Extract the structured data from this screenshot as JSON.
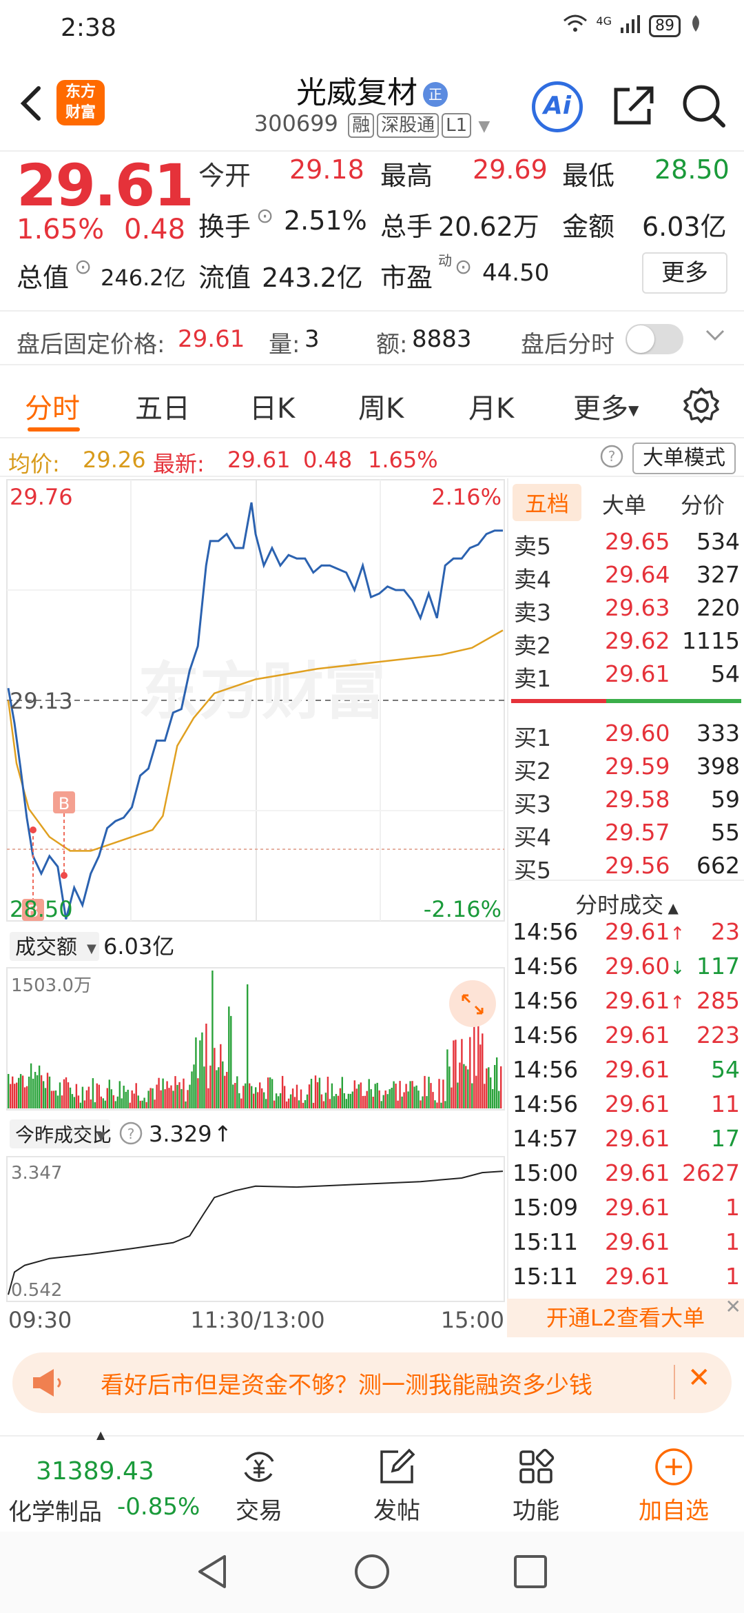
{
  "status": {
    "time": "2:38",
    "network": "4G",
    "battery": "89"
  },
  "header": {
    "logo_line1": "东方",
    "logo_line2": "财富",
    "stock_name": "光威复材",
    "badge": "正",
    "code": "300699",
    "tags": [
      "融",
      "深股通",
      "L1"
    ],
    "ai_label": "Ai"
  },
  "quote": {
    "price": "29.61",
    "pct": "1.65%",
    "change": "0.48",
    "open_label": "今开",
    "open": "29.18",
    "high_label": "最高",
    "high": "29.69",
    "low_label": "最低",
    "low": "28.50",
    "turnover_label": "换手",
    "turnover": "2.51%",
    "volume_label": "总手",
    "volume": "20.62万",
    "amount_label": "金额",
    "amount": "6.03亿",
    "mcap_label": "总值",
    "mcap": "246.2亿",
    "float_label": "流值",
    "float": "243.2亿",
    "pe_label": "市盈",
    "pe_sup": "动",
    "pe": "44.50",
    "more": "更多"
  },
  "after_hours": {
    "label": "盘后固定价格:",
    "price": "29.61",
    "qty_label": "量:",
    "qty": "3",
    "amt_label": "额:",
    "amt": "8883",
    "toggle_label": "盘后分时"
  },
  "tabs": [
    "分时",
    "五日",
    "日K",
    "周K",
    "月K",
    "更多"
  ],
  "avg": {
    "avg_label": "均价:",
    "avg": "29.26",
    "last_label": "最新:",
    "last": "29.61",
    "chg": "0.48",
    "pct": "1.65%",
    "mode_btn": "大单模式"
  },
  "chart": {
    "y_top": "29.76",
    "y_mid": "29.13",
    "y_bot": "28.50",
    "pct_top": "2.16%",
    "pct_bot": "-2.16%",
    "watermark": "东方财富",
    "marker": "B",
    "vol_selector": "成交额",
    "vol_total": "6.03亿",
    "vol_max": "1503.0万",
    "ratio_selector": "今昨成交比",
    "ratio_value": "3.329",
    "ratio_arrow": "↑",
    "ratio_top": "3.347",
    "ratio_bot": "0.542",
    "time_start": "09:30",
    "time_mid": "11:30/13:00",
    "time_end": "15:00"
  },
  "orderbook": {
    "tabs": [
      "五档",
      "大单",
      "分价"
    ],
    "asks": [
      {
        "label": "卖5",
        "price": "29.65",
        "vol": "534"
      },
      {
        "label": "卖4",
        "price": "29.64",
        "vol": "327"
      },
      {
        "label": "卖3",
        "price": "29.63",
        "vol": "220"
      },
      {
        "label": "卖2",
        "price": "29.62",
        "vol": "1115"
      },
      {
        "label": "卖1",
        "price": "29.61",
        "vol": "54"
      }
    ],
    "bids": [
      {
        "label": "买1",
        "price": "29.60",
        "vol": "333"
      },
      {
        "label": "买2",
        "price": "29.59",
        "vol": "398"
      },
      {
        "label": "买3",
        "price": "29.58",
        "vol": "59"
      },
      {
        "label": "买4",
        "price": "29.57",
        "vol": "55"
      },
      {
        "label": "买5",
        "price": "29.56",
        "vol": "662"
      }
    ],
    "ticks_title": "分时成交",
    "ticks": [
      {
        "t": "14:56",
        "p": "29.61",
        "arrow": "↑",
        "v": "23",
        "vc": "red"
      },
      {
        "t": "14:56",
        "p": "29.60",
        "arrow": "↓",
        "v": "117",
        "vc": "green"
      },
      {
        "t": "14:56",
        "p": "29.61",
        "arrow": "↑",
        "v": "285",
        "vc": "red"
      },
      {
        "t": "14:56",
        "p": "29.61",
        "arrow": "",
        "v": "223",
        "vc": "red"
      },
      {
        "t": "14:56",
        "p": "29.61",
        "arrow": "",
        "v": "54",
        "vc": "green"
      },
      {
        "t": "14:56",
        "p": "29.61",
        "arrow": "",
        "v": "11",
        "vc": "red"
      },
      {
        "t": "14:57",
        "p": "29.61",
        "arrow": "",
        "v": "17",
        "vc": "green"
      },
      {
        "t": "15:00",
        "p": "29.61",
        "arrow": "",
        "v": "2627",
        "vc": "red"
      },
      {
        "t": "15:09",
        "p": "29.61",
        "arrow": "",
        "v": "1",
        "vc": "red"
      },
      {
        "t": "15:11",
        "p": "29.61",
        "arrow": "",
        "v": "1",
        "vc": "red"
      },
      {
        "t": "15:11",
        "p": "29.61",
        "arrow": "",
        "v": "1",
        "vc": "red"
      }
    ],
    "l2_label": "开通L2查看大单"
  },
  "promo": {
    "text": "看好后市但是资金不够？测一测我能融资多少钱"
  },
  "bottom_nav": {
    "index_value": "31389.43",
    "index_name": "化学制品",
    "index_pct": "-0.85%",
    "items": [
      "交易",
      "发帖",
      "功能",
      "加自选"
    ]
  },
  "colors": {
    "red": "#e5323a",
    "green": "#1a9a3a",
    "accent": "#ff6a00",
    "blue_line": "#2b62b0",
    "avg_line": "#e0a020"
  }
}
